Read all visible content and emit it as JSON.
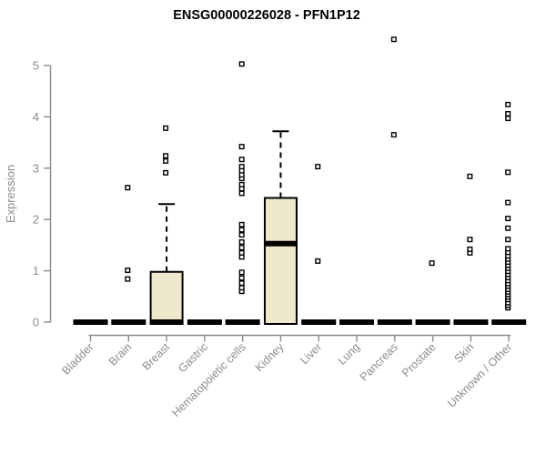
{
  "chart_data": {
    "type": "boxplot",
    "title": "ENSG00000226028 - PFN1P12",
    "ylabel": "Expression",
    "xlabel": "",
    "ylim": [
      0,
      5
    ],
    "yticks": [
      0,
      1,
      2,
      3,
      4,
      5
    ],
    "grid": false,
    "legend": "none",
    "colors": {
      "box_fill": "#efe8cd",
      "box_border": "#000000",
      "median": "#000000",
      "outlier_fill": "#ffffff",
      "outlier_border": "#000000",
      "axis": "#8c8c8c",
      "label": "#8c8c8c",
      "title": "#000000"
    },
    "categories": [
      "Bladder",
      "Brain",
      "Breast",
      "Gastric",
      "Hematopoietic cells",
      "Kidney",
      "Liver",
      "Lung",
      "Pancreas",
      "Prostate",
      "Skin",
      "Unknown / Other"
    ],
    "boxes": [
      {
        "category": "Bladder",
        "q1": 0,
        "median": 0,
        "q3": 0,
        "whisker_low": 0,
        "whisker_high": 0,
        "outliers": []
      },
      {
        "category": "Brain",
        "q1": 0,
        "median": 0,
        "q3": 0,
        "whisker_low": 0,
        "whisker_high": 0,
        "outliers": [
          0.84,
          1.01,
          2.62
        ]
      },
      {
        "category": "Breast",
        "q1": 0,
        "median": 0,
        "q3": 0.98,
        "whisker_low": 0,
        "whisker_high": 2.3,
        "outliers": [
          2.91,
          3.14,
          3.24,
          3.78
        ]
      },
      {
        "category": "Gastric",
        "q1": 0,
        "median": 0,
        "q3": 0,
        "whisker_low": 0,
        "whisker_high": 0,
        "outliers": []
      },
      {
        "category": "Hematopoietic cells",
        "q1": 0,
        "median": 0,
        "q3": 0,
        "whisker_low": 0,
        "whisker_high": 0,
        "outliers": [
          0.6,
          0.67,
          0.76,
          0.86,
          0.97,
          1.27,
          1.35,
          1.45,
          1.56,
          1.7,
          1.8,
          1.9,
          2.51,
          2.6,
          2.68,
          2.8,
          2.87,
          2.95,
          3.03,
          3.17,
          3.42,
          5.03
        ]
      },
      {
        "category": "Kidney",
        "q1": 0,
        "median": 1.53,
        "q3": 2.42,
        "whisker_low": 0,
        "whisker_high": 3.72,
        "outliers": []
      },
      {
        "category": "Liver",
        "q1": 0,
        "median": 0,
        "q3": 0,
        "whisker_low": 0,
        "whisker_high": 0,
        "outliers": [
          1.19,
          3.03
        ]
      },
      {
        "category": "Lung",
        "q1": 0,
        "median": 0,
        "q3": 0,
        "whisker_low": 0,
        "whisker_high": 0,
        "outliers": []
      },
      {
        "category": "Pancreas",
        "q1": 0,
        "median": 0,
        "q3": 0,
        "whisker_low": 0,
        "whisker_high": 0,
        "outliers": [
          3.65,
          5.51
        ]
      },
      {
        "category": "Prostate",
        "q1": 0,
        "median": 0,
        "q3": 0,
        "whisker_low": 0,
        "whisker_high": 0,
        "outliers": [
          1.15
        ]
      },
      {
        "category": "Skin",
        "q1": 0,
        "median": 0,
        "q3": 0,
        "whisker_low": 0,
        "whisker_high": 0,
        "outliers": [
          1.35,
          1.42,
          1.61,
          2.84
        ]
      },
      {
        "category": "Unknown / Other",
        "q1": 0,
        "median": 0,
        "q3": 0,
        "whisker_low": 0,
        "whisker_high": 0,
        "outliers": [
          0.28,
          0.33,
          0.38,
          0.44,
          0.49,
          0.54,
          0.59,
          0.64,
          0.7,
          0.75,
          0.81,
          0.87,
          0.93,
          0.99,
          1.05,
          1.11,
          1.17,
          1.23,
          1.29,
          1.36,
          1.43,
          1.61,
          1.83,
          2.02,
          2.33,
          2.92,
          3.97,
          4.06,
          4.24
        ]
      }
    ]
  }
}
